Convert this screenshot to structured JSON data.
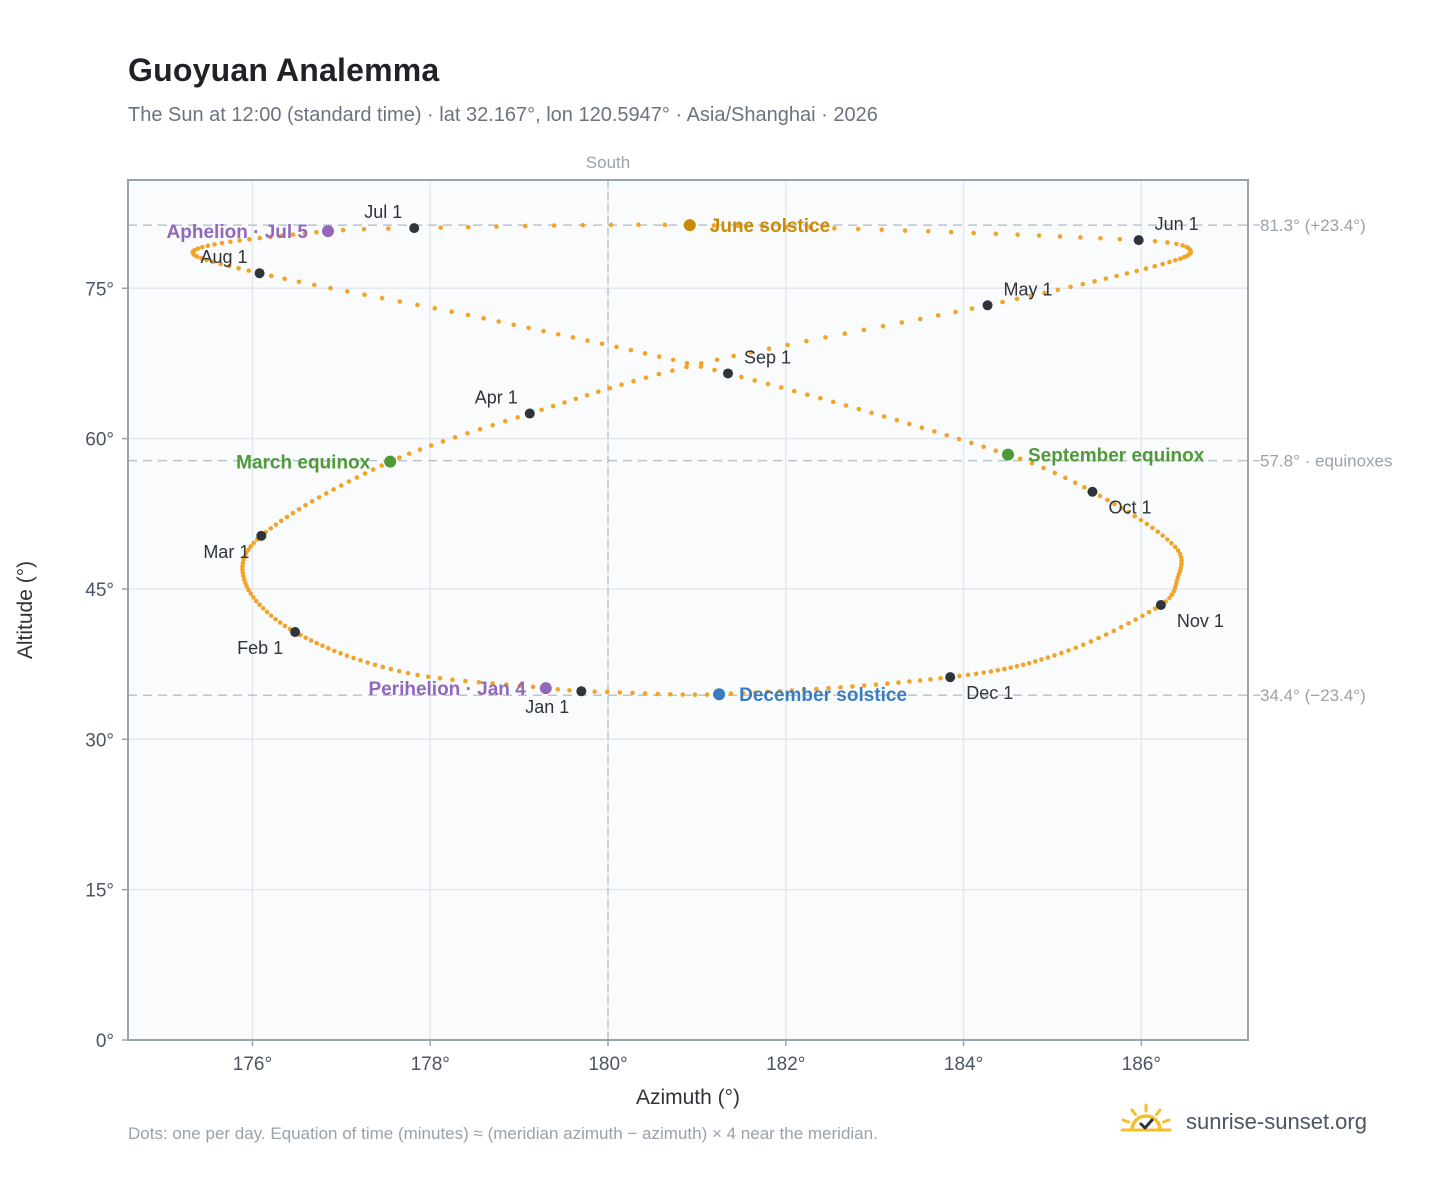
{
  "title": "Guoyuan Analemma",
  "subtitle": "The Sun at 12:00 (standard time) · lat 32.167°, lon 120.5947° · Asia/Shanghai · 2026",
  "footer_note": "Dots: one per day. Equation of time (minutes) ≈ (meridian azimuth − azimuth) × 4 near the meridian.",
  "brand": {
    "text": "sunrise-sunset.org",
    "icon": "sunrise-logo-icon"
  },
  "colors": {
    "path": "#f2a428",
    "month_marker": "#2f343b",
    "june_solstice": "#c98a06",
    "december_solstice": "#3a7cc0",
    "equinox": "#4e9a37",
    "apsis": "#9368bb",
    "grid": "#e4e9ef",
    "plot_bg": "#f9fbfd",
    "frame": "#98a3b0",
    "reference_line": "#bcc4cd"
  },
  "chart_data": {
    "type": "scatter",
    "title": "Guoyuan Analemma",
    "xlabel": "Azimuth (°)",
    "ylabel": "Altitude (°)",
    "xlim": [
      174.6,
      187.2
    ],
    "ylim": [
      0,
      85.8
    ],
    "xticks": [
      176,
      178,
      180,
      182,
      184,
      186
    ],
    "xtick_labels": [
      "176°",
      "178°",
      "180°",
      "182°",
      "184°",
      "186°"
    ],
    "yticks": [
      0,
      15,
      30,
      45,
      60,
      75
    ],
    "ytick_labels": [
      "0°",
      "15°",
      "30°",
      "45°",
      "60°",
      "75°"
    ],
    "grid": true,
    "meridian": {
      "azimuth": 180,
      "label": "South"
    },
    "reference_lines": [
      {
        "altitude": 81.3,
        "label": "81.3° (+23.4°)"
      },
      {
        "altitude": 57.8,
        "label": "57.8° · equinoxes"
      },
      {
        "altitude": 34.4,
        "label": "34.4° (−23.4°)"
      }
    ],
    "series": [
      {
        "name": "",
        "daily_points_per_year": 365,
        "anchors": [
          {
            "date": "Jan 1",
            "azimuth": 179.7,
            "altitude": 34.8
          },
          {
            "date": "Jan 4",
            "azimuth": 179.3,
            "altitude": 35.1
          },
          {
            "date": "Jan 15",
            "azimuth": 177.75,
            "altitude": 36.6
          },
          {
            "date": "Feb 1",
            "azimuth": 176.48,
            "altitude": 40.7
          },
          {
            "date": "Feb 15",
            "azimuth": 175.92,
            "altitude": 45.6
          },
          {
            "date": "Mar 1",
            "azimuth": 176.1,
            "altitude": 50.3
          },
          {
            "date": "Mar 20",
            "azimuth": 177.55,
            "altitude": 57.7
          },
          {
            "date": "Apr 1",
            "azimuth": 179.12,
            "altitude": 62.5
          },
          {
            "date": "Apr 15",
            "azimuth": 181.05,
            "altitude": 67.5
          },
          {
            "date": "May 1",
            "azimuth": 184.27,
            "altitude": 73.3
          },
          {
            "date": "May 15",
            "azimuth": 186.15,
            "altitude": 77.2
          },
          {
            "date": "May 25",
            "azimuth": 186.55,
            "altitude": 78.8
          },
          {
            "date": "Jun 1",
            "azimuth": 185.97,
            "altitude": 79.8
          },
          {
            "date": "Jun 21",
            "azimuth": 180.92,
            "altitude": 81.3
          },
          {
            "date": "Jul 1",
            "azimuth": 177.82,
            "altitude": 81.0
          },
          {
            "date": "Jul 5",
            "azimuth": 176.85,
            "altitude": 80.7
          },
          {
            "date": "Jul 20",
            "azimuth": 175.35,
            "altitude": 78.8
          },
          {
            "date": "Aug 1",
            "azimuth": 176.08,
            "altitude": 76.5
          },
          {
            "date": "Aug 15",
            "azimuth": 178.6,
            "altitude": 72.0
          },
          {
            "date": "Sep 1",
            "azimuth": 181.35,
            "altitude": 66.5
          },
          {
            "date": "Sep 23",
            "azimuth": 184.5,
            "altitude": 58.4
          },
          {
            "date": "Oct 1",
            "azimuth": 185.45,
            "altitude": 54.7
          },
          {
            "date": "Oct 15",
            "azimuth": 186.38,
            "altitude": 49.2
          },
          {
            "date": "Oct 25",
            "azimuth": 186.4,
            "altitude": 45.8
          },
          {
            "date": "Nov 1",
            "azimuth": 186.22,
            "altitude": 43.4
          },
          {
            "date": "Nov 15",
            "azimuth": 185.1,
            "altitude": 38.6
          },
          {
            "date": "Dec 1",
            "azimuth": 183.85,
            "altitude": 36.2
          },
          {
            "date": "Dec 21",
            "azimuth": 181.25,
            "altitude": 34.5
          },
          {
            "date": "Dec 31",
            "azimuth": 179.85,
            "altitude": 34.75
          }
        ]
      }
    ],
    "month_markers": [
      {
        "label": "Jan 1",
        "azimuth": 179.7,
        "altitude": 34.8,
        "label_pos": "below-left"
      },
      {
        "label": "Feb 1",
        "azimuth": 176.48,
        "altitude": 40.7,
        "label_pos": "below-left"
      },
      {
        "label": "Mar 1",
        "azimuth": 176.1,
        "altitude": 50.3,
        "label_pos": "below-left"
      },
      {
        "label": "Apr 1",
        "azimuth": 179.12,
        "altitude": 62.5,
        "label_pos": "above-left"
      },
      {
        "label": "May 1",
        "azimuth": 184.27,
        "altitude": 73.3,
        "label_pos": "above-right"
      },
      {
        "label": "Jun 1",
        "azimuth": 185.97,
        "altitude": 79.8,
        "label_pos": "above-right"
      },
      {
        "label": "Jul 1",
        "azimuth": 177.82,
        "altitude": 81.0,
        "label_pos": "above-left"
      },
      {
        "label": "Aug 1",
        "azimuth": 176.08,
        "altitude": 76.5,
        "label_pos": "above-left"
      },
      {
        "label": "Sep 1",
        "azimuth": 181.35,
        "altitude": 66.5,
        "label_pos": "above-right"
      },
      {
        "label": "Oct 1",
        "azimuth": 185.45,
        "altitude": 54.7,
        "label_pos": "below-right"
      },
      {
        "label": "Nov 1",
        "azimuth": 186.22,
        "altitude": 43.4,
        "label_pos": "below-right"
      },
      {
        "label": "Dec 1",
        "azimuth": 183.85,
        "altitude": 36.2,
        "label_pos": "below-right"
      }
    ],
    "events": [
      {
        "label": "June solstice",
        "azimuth": 180.92,
        "altitude": 81.3,
        "color": "#c98a06",
        "label_side": "right"
      },
      {
        "label": "December solstice",
        "azimuth": 181.25,
        "altitude": 34.5,
        "color": "#3a7cc0",
        "label_side": "right"
      },
      {
        "label": "March equinox",
        "azimuth": 177.55,
        "altitude": 57.7,
        "color": "#4e9a37",
        "label_side": "left"
      },
      {
        "label": "September equinox",
        "azimuth": 184.5,
        "altitude": 58.4,
        "color": "#4e9a37",
        "label_side": "right"
      },
      {
        "label": "Aphelion · Jul 5",
        "azimuth": 176.85,
        "altitude": 80.7,
        "color": "#9368bb",
        "label_side": "left"
      },
      {
        "label": "Perihelion · Jan 4",
        "azimuth": 179.3,
        "altitude": 35.1,
        "color": "#9368bb",
        "label_side": "left"
      }
    ]
  }
}
